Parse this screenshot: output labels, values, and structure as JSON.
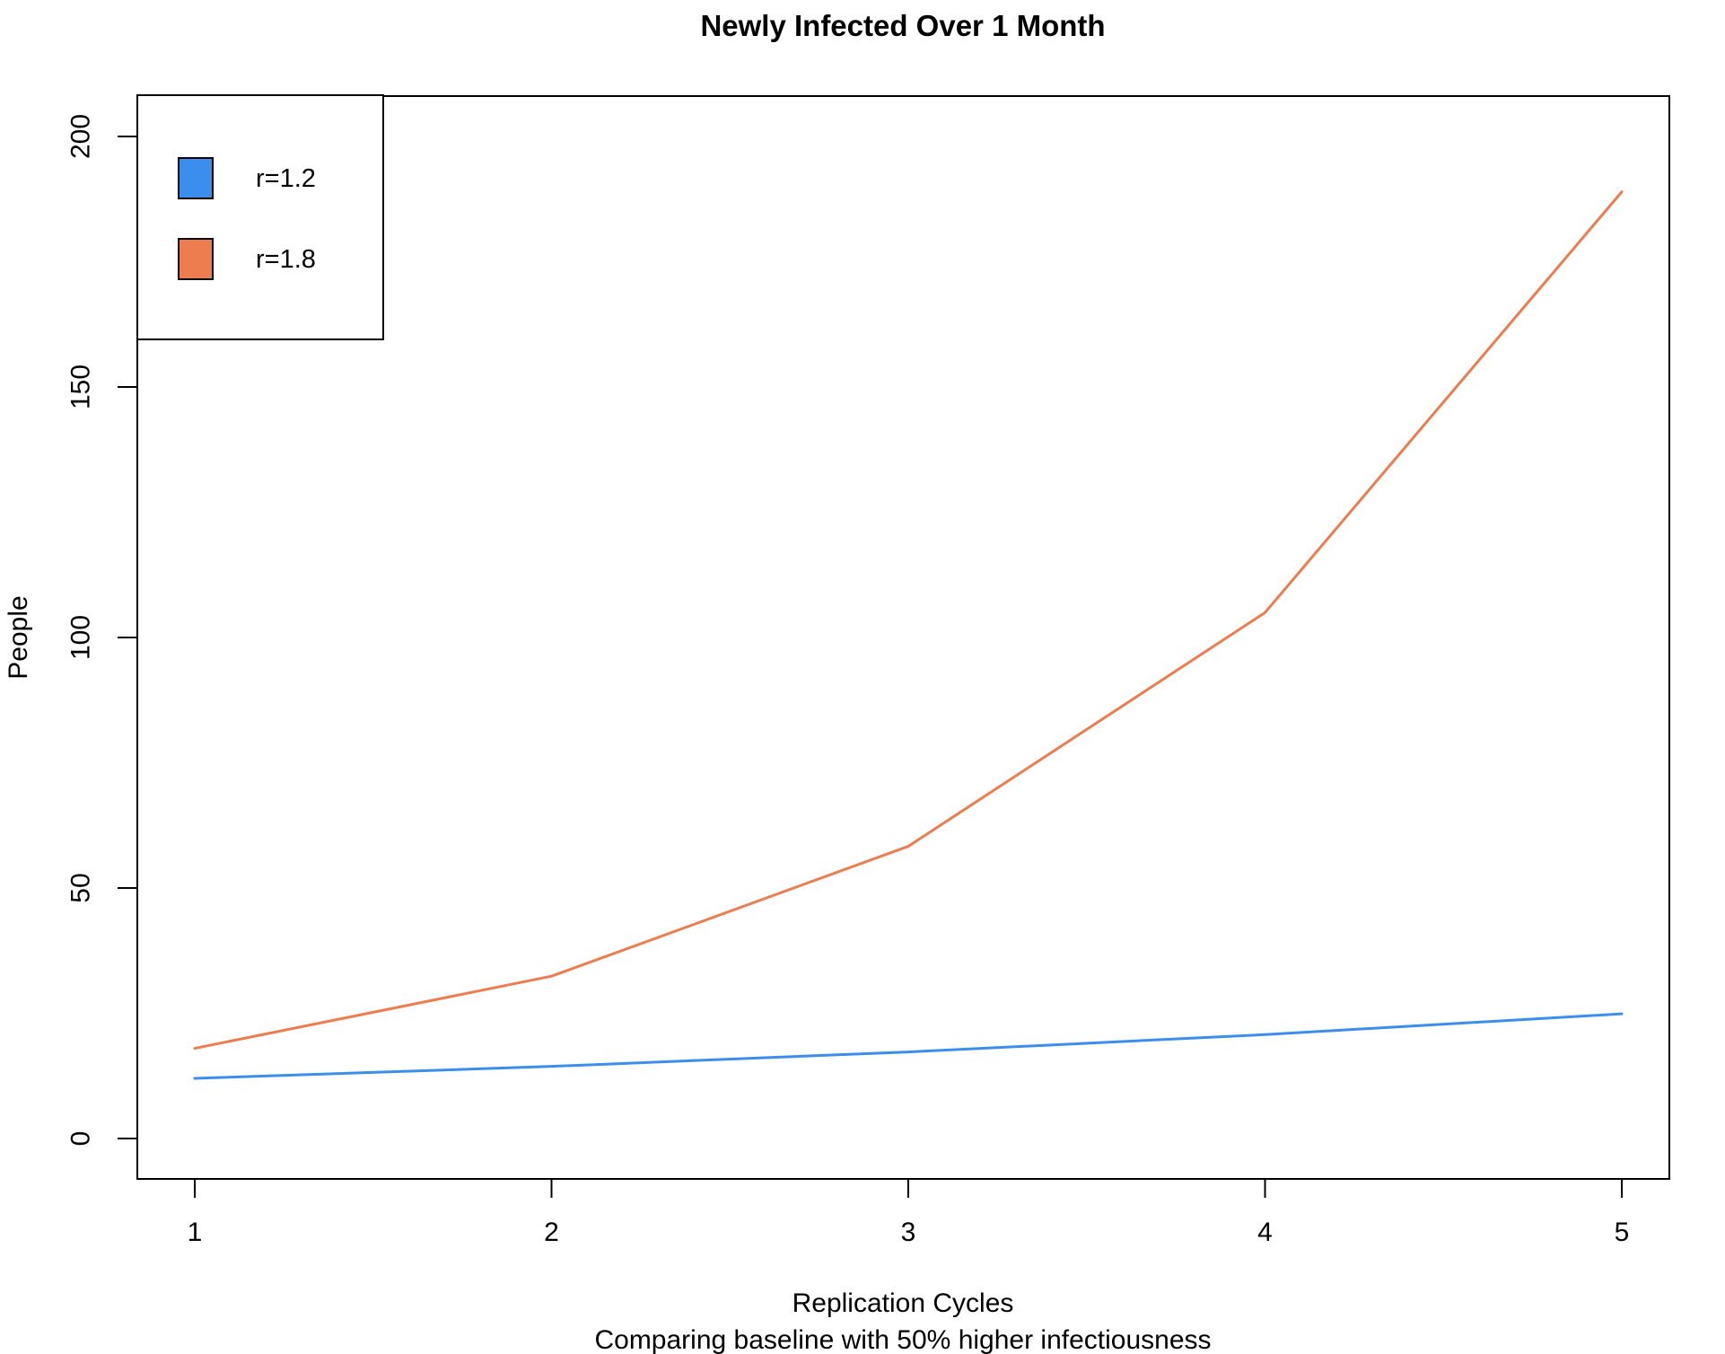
{
  "chart_data": {
    "type": "line",
    "title": "Newly Infected Over 1 Month",
    "xlabel": "Replication Cycles",
    "subtitle": "Comparing baseline with 50% higher infectiousness",
    "ylabel": "People",
    "x": [
      1,
      2,
      3,
      4,
      5
    ],
    "x_ticks": [
      "1",
      "2",
      "3",
      "4",
      "5"
    ],
    "y_ticks": [
      "0",
      "50",
      "100",
      "150",
      "200"
    ],
    "y_tick_values": [
      0,
      50,
      100,
      150,
      200
    ],
    "xlim": [
      1,
      5
    ],
    "ylim": [
      0,
      200
    ],
    "grid": false,
    "legend_position": "topleft",
    "series": [
      {
        "name": "r=1.2",
        "color": "#3B8EEE",
        "values": [
          12,
          14.4,
          17.28,
          20.74,
          24.88
        ]
      },
      {
        "name": "r=1.8",
        "color": "#ED7C4F",
        "values": [
          18,
          32.4,
          58.32,
          104.98,
          188.96
        ]
      }
    ],
    "axis_color": "#000000",
    "background_color": "#ffffff"
  }
}
